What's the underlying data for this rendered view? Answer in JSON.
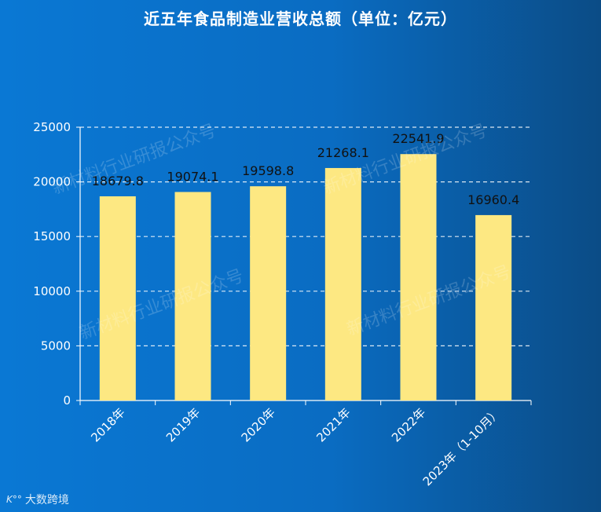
{
  "chart_data": {
    "type": "bar",
    "title": "近五年食品制造业营收总额（单位：亿元）",
    "categories": [
      "2018年",
      "2019年",
      "2020年",
      "2021年",
      "2022年",
      "2023年（1-10月）"
    ],
    "values": [
      18679.8,
      19074.1,
      19598.8,
      21268.1,
      22541.9,
      16960.4
    ],
    "value_labels": [
      "18679.8",
      "19074.1",
      "19598.8",
      "21268.1",
      "22541.9",
      "16960.4"
    ],
    "ylim": [
      0,
      25000
    ],
    "yticks": [
      0,
      5000,
      10000,
      15000,
      20000,
      25000
    ],
    "grid": true,
    "bar_color": "#fde882",
    "xlabel": "",
    "ylabel": ""
  },
  "watermarks": [
    "新材料行业研报公众号",
    "新材料行业研报公众号",
    "新材料行业研报公众号",
    "新材料行业研报公众号"
  ],
  "source": {
    "logo_glyph": "K°°",
    "label": "大数跨境"
  }
}
